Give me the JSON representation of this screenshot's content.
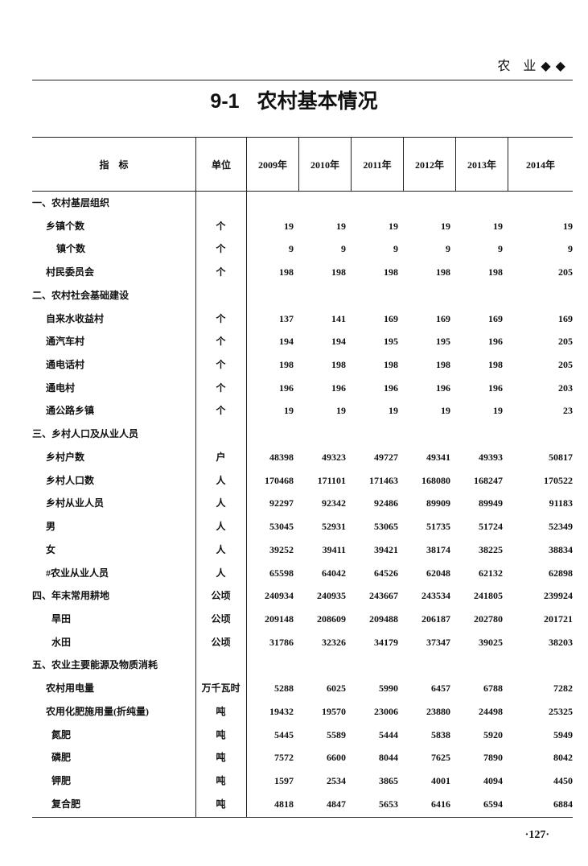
{
  "running_head": "农 业◆◆",
  "title": {
    "number": "9-1",
    "text": "农村基本情况"
  },
  "table": {
    "headers": {
      "indicator": "指　标",
      "unit": "单位",
      "years": [
        "2009年",
        "2010年",
        "2011年",
        "2012年",
        "2013年",
        "2014年"
      ]
    },
    "rows": [
      {
        "label": "一、农村基层组织",
        "level": 0,
        "unit": "",
        "values": []
      },
      {
        "label": "乡镇个数",
        "level": 1,
        "unit": "个",
        "values": [
          "19",
          "19",
          "19",
          "19",
          "19",
          "19"
        ]
      },
      {
        "label": "镇个数",
        "level": 2,
        "unit": "个",
        "values": [
          "9",
          "9",
          "9",
          "9",
          "9",
          "9"
        ]
      },
      {
        "label": "村民委员会",
        "level": 1,
        "unit": "个",
        "values": [
          "198",
          "198",
          "198",
          "198",
          "198",
          "205"
        ]
      },
      {
        "label": "二、农村社会基础建设",
        "level": 0,
        "unit": "",
        "values": []
      },
      {
        "label": "自来水收益村",
        "level": 1,
        "unit": "个",
        "values": [
          "137",
          "141",
          "169",
          "169",
          "169",
          "169"
        ]
      },
      {
        "label": "通汽车村",
        "level": 1,
        "unit": "个",
        "values": [
          "194",
          "194",
          "195",
          "195",
          "196",
          "205"
        ]
      },
      {
        "label": "通电话村",
        "level": 1,
        "unit": "个",
        "values": [
          "198",
          "198",
          "198",
          "198",
          "198",
          "205"
        ]
      },
      {
        "label": "通电村",
        "level": 1,
        "unit": "个",
        "values": [
          "196",
          "196",
          "196",
          "196",
          "196",
          "203"
        ]
      },
      {
        "label": "通公路乡镇",
        "level": 1,
        "unit": "个",
        "values": [
          "19",
          "19",
          "19",
          "19",
          "19",
          "23"
        ]
      },
      {
        "label": "三、乡村人口及从业人员",
        "level": 0,
        "unit": "",
        "values": []
      },
      {
        "label": "乡村户数",
        "level": 1,
        "unit": "户",
        "values": [
          "48398",
          "49323",
          "49727",
          "49341",
          "49393",
          "50817"
        ]
      },
      {
        "label": "乡村人口数",
        "level": 1,
        "unit": "人",
        "values": [
          "170468",
          "171101",
          "171463",
          "168080",
          "168247",
          "170522"
        ]
      },
      {
        "label": "乡村从业人员",
        "level": 1,
        "unit": "人",
        "values": [
          "92297",
          "92342",
          "92486",
          "89909",
          "89949",
          "91183"
        ]
      },
      {
        "label": "男",
        "level": 1,
        "unit": "人",
        "values": [
          "53045",
          "52931",
          "53065",
          "51735",
          "51724",
          "52349"
        ]
      },
      {
        "label": "女",
        "level": 1,
        "unit": "人",
        "values": [
          "39252",
          "39411",
          "39421",
          "38174",
          "38225",
          "38834"
        ]
      },
      {
        "label": "#农业从业人员",
        "level": 1,
        "unit": "人",
        "values": [
          "65598",
          "64042",
          "64526",
          "62048",
          "62132",
          "62898"
        ]
      },
      {
        "label": "四、年末常用耕地",
        "level": 0,
        "unit": "公顷",
        "values": [
          "240934",
          "240935",
          "243667",
          "243534",
          "241805",
          "239924"
        ]
      },
      {
        "label": "旱田",
        "level": 2,
        "unit": "公顷",
        "values": [
          "209148",
          "208609",
          "209488",
          "206187",
          "202780",
          "201721"
        ]
      },
      {
        "label": "水田",
        "level": 2,
        "unit": "公顷",
        "values": [
          "31786",
          "32326",
          "34179",
          "37347",
          "39025",
          "38203"
        ]
      },
      {
        "label": "五、农业主要能源及物质消耗",
        "level": 0,
        "unit": "",
        "values": []
      },
      {
        "label": "农村用电量",
        "level": 1,
        "unit": "万千瓦时",
        "values": [
          "5288",
          "6025",
          "5990",
          "6457",
          "6788",
          "7282"
        ]
      },
      {
        "label": "农用化肥施用量(折纯量)",
        "level": 1,
        "unit": "吨",
        "values": [
          "19432",
          "19570",
          "23006",
          "23880",
          "24498",
          "25325"
        ]
      },
      {
        "label": "氮肥",
        "level": 2,
        "unit": "吨",
        "values": [
          "5445",
          "5589",
          "5444",
          "5838",
          "5920",
          "5949"
        ]
      },
      {
        "label": "磷肥",
        "level": 2,
        "unit": "吨",
        "values": [
          "7572",
          "6600",
          "8044",
          "7625",
          "7890",
          "8042"
        ]
      },
      {
        "label": "钾肥",
        "level": 2,
        "unit": "吨",
        "values": [
          "1597",
          "2534",
          "3865",
          "4001",
          "4094",
          "4450"
        ]
      },
      {
        "label": "复合肥",
        "level": 2,
        "unit": "吨",
        "values": [
          "4818",
          "4847",
          "5653",
          "6416",
          "6594",
          "6884"
        ]
      }
    ]
  },
  "page_number": "·127·"
}
